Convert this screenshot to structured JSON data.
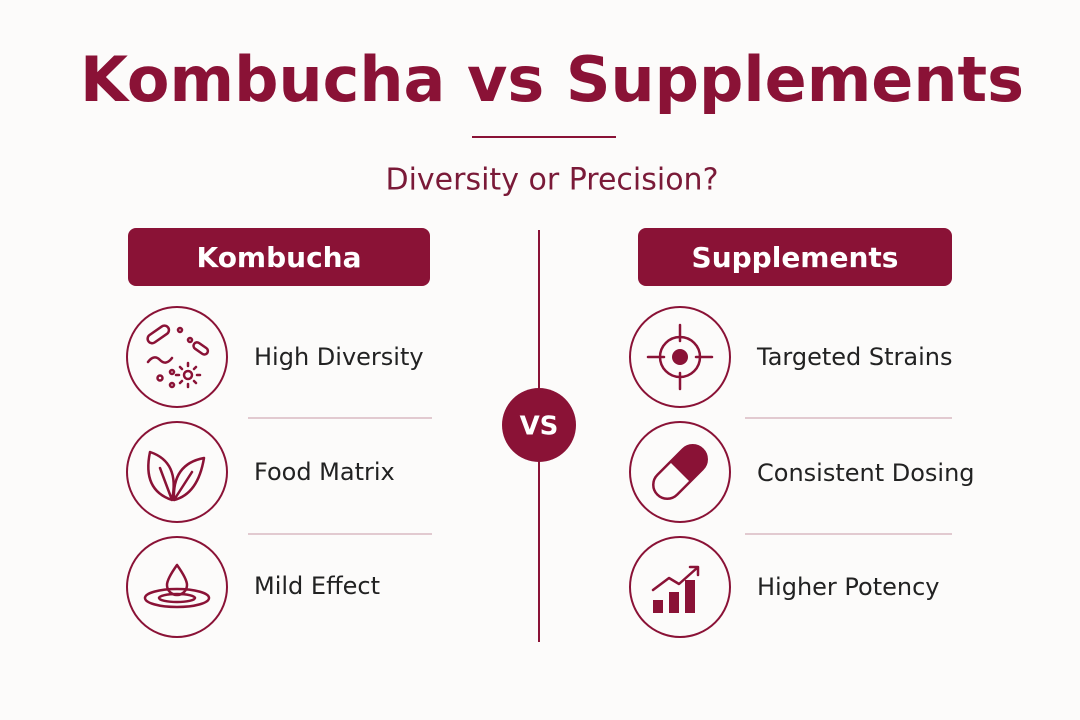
{
  "header": {
    "title": "Kombucha vs Supplements",
    "subtitle": "Diversity or Precision?"
  },
  "vs_label": "VS",
  "columns": [
    {
      "header": "Kombucha",
      "items": [
        "High Diversity",
        "Food Matrix",
        "Mild Effect"
      ]
    },
    {
      "header": "Supplements",
      "items": [
        "Targeted Strains",
        "Consistent Dosing",
        "Higher Potency"
      ]
    }
  ]
}
